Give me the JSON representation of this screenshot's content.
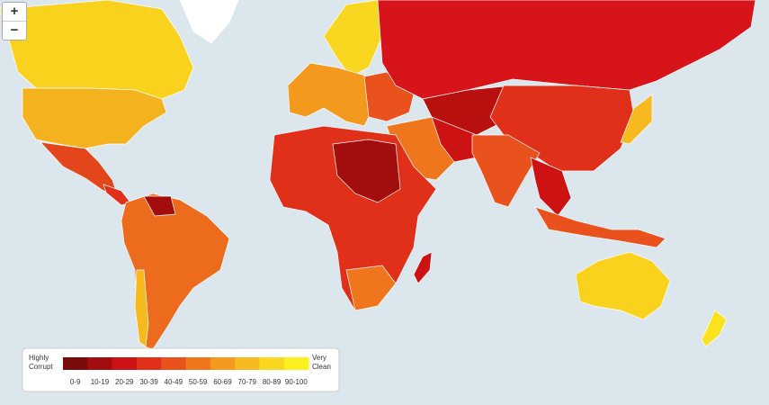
{
  "zoom_controls": {
    "zoom_in": "+",
    "zoom_out": "−"
  },
  "legend": {
    "low_label": [
      "Highly",
      "Corrupt"
    ],
    "high_label": [
      "Very",
      "Clean"
    ],
    "bins": [
      {
        "label": "0-9",
        "color": "#7a0b0b"
      },
      {
        "label": "10-19",
        "color": "#a40d0d"
      },
      {
        "label": "20-29",
        "color": "#cc1212"
      },
      {
        "label": "30-39",
        "color": "#e0301a"
      },
      {
        "label": "40-49",
        "color": "#e9521c"
      },
      {
        "label": "50-59",
        "color": "#ef761d"
      },
      {
        "label": "60-69",
        "color": "#f39a1e"
      },
      {
        "label": "70-79",
        "color": "#f6b91f"
      },
      {
        "label": "80-89",
        "color": "#f9d61f"
      },
      {
        "label": "90-100",
        "color": "#fdf020"
      }
    ]
  }
}
